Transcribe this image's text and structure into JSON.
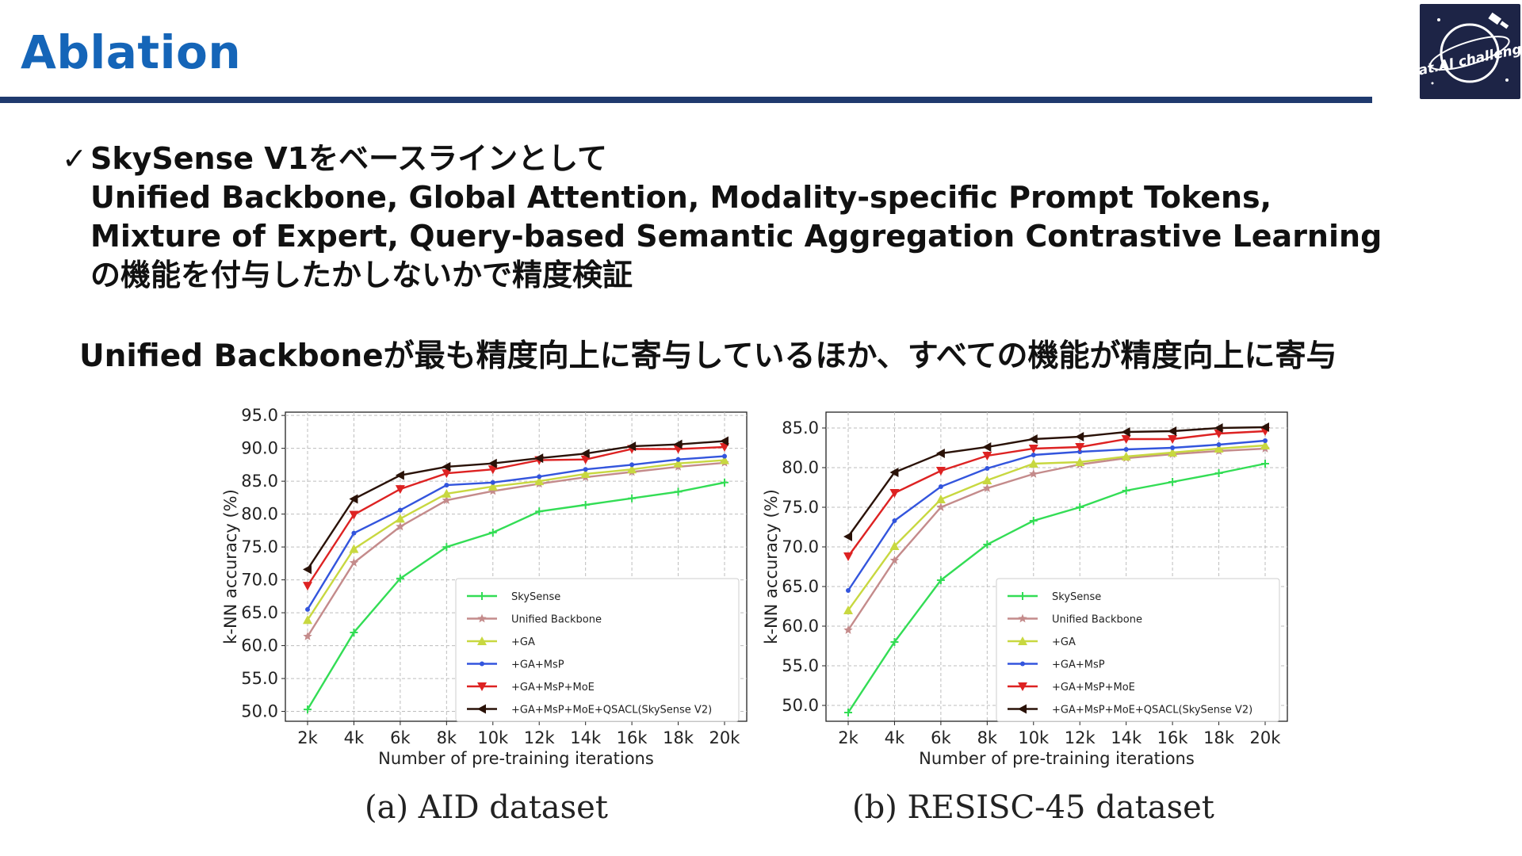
{
  "slide": {
    "title": "Ablation",
    "check_mark": "✓",
    "bullet_lines": [
      "SkySense V1をベースラインとして",
      "Unified Backbone, Global Attention, Modality-specific Prompt Tokens,",
      "Mixture of Expert, Query-based Semantic Aggregation Contrastive Learning",
      "の機能を付与したかしないかで精度検証"
    ],
    "conclusion": "Unified Backboneが最も精度向上に寄与しているほか、すべての機能が精度向上に寄与",
    "logo_text": "Sat.AI challenge"
  },
  "chart_data": [
    {
      "type": "line",
      "caption": "(a) AID dataset",
      "xlabel": "Number of pre-training iterations",
      "ylabel": "k-NN accuracy (%)",
      "categories": [
        "2k",
        "4k",
        "6k",
        "8k",
        "10k",
        "12k",
        "14k",
        "16k",
        "18k",
        "20k"
      ],
      "ylim": [
        48.5,
        95.5
      ],
      "yticks": [
        "95.0",
        "90.0",
        "85.0",
        "80.0",
        "75.0",
        "70.0",
        "65.0",
        "60.0",
        "55.0",
        "50.0"
      ],
      "grid": true,
      "legend_position": "lower-right",
      "series": [
        {
          "name": "SkySense",
          "color": "#33dd55",
          "marker": "plus",
          "values": [
            50.3,
            62.0,
            70.2,
            75.0,
            77.2,
            80.4,
            81.4,
            82.4,
            83.4,
            84.8
          ]
        },
        {
          "name": "Unified Backbone",
          "color": "#c48b8b",
          "marker": "star",
          "values": [
            61.4,
            72.6,
            78.1,
            82.1,
            83.5,
            84.6,
            85.6,
            86.4,
            87.2,
            87.8
          ]
        },
        {
          "name": "+GA",
          "color": "#c8d840",
          "marker": "triangle-up",
          "values": [
            63.9,
            74.7,
            79.3,
            83.1,
            84.2,
            85.0,
            86.1,
            86.8,
            87.7,
            88.2
          ]
        },
        {
          "name": "+GA+MsP",
          "color": "#3355dd",
          "marker": "point",
          "values": [
            65.5,
            77.1,
            80.6,
            84.4,
            84.8,
            85.7,
            86.8,
            87.5,
            88.3,
            88.8
          ]
        },
        {
          "name": "+GA+MsP+MoE",
          "color": "#dd2222",
          "marker": "triangle-down",
          "values": [
            69.1,
            79.9,
            83.8,
            86.2,
            86.8,
            88.2,
            88.3,
            89.9,
            89.9,
            90.2
          ]
        },
        {
          "name": "+GA+MsP+MoE+QSACL(SkySense V2)",
          "color": "#2a1208",
          "marker": "triangle-left",
          "values": [
            71.6,
            82.3,
            85.9,
            87.2,
            87.7,
            88.5,
            89.2,
            90.3,
            90.6,
            91.1
          ]
        }
      ]
    },
    {
      "type": "line",
      "caption": "(b) RESISC-45 dataset",
      "xlabel": "Number of pre-training iterations",
      "ylabel": "k-NN accuracy (%)",
      "categories": [
        "2k",
        "4k",
        "6k",
        "8k",
        "10k",
        "12k",
        "14k",
        "16k",
        "18k",
        "20k"
      ],
      "ylim": [
        48.0,
        87.0
      ],
      "yticks": [
        "85.0",
        "80.0",
        "75.0",
        "70.0",
        "65.0",
        "60.0",
        "55.0",
        "50.0"
      ],
      "grid": true,
      "legend_position": "lower-right",
      "series": [
        {
          "name": "SkySense",
          "color": "#33dd55",
          "marker": "plus",
          "values": [
            49.1,
            58.0,
            65.8,
            70.3,
            73.3,
            75.0,
            77.1,
            78.2,
            79.3,
            80.5
          ]
        },
        {
          "name": "Unified Backbone",
          "color": "#c48b8b",
          "marker": "star",
          "values": [
            59.5,
            68.3,
            75.0,
            77.4,
            79.2,
            80.4,
            81.2,
            81.7,
            82.1,
            82.4
          ]
        },
        {
          "name": "+GA",
          "color": "#c8d840",
          "marker": "triangle-up",
          "values": [
            62.0,
            70.1,
            76.0,
            78.4,
            80.5,
            80.7,
            81.4,
            81.9,
            82.4,
            82.8
          ]
        },
        {
          "name": "+GA+MsP",
          "color": "#3355dd",
          "marker": "point",
          "values": [
            64.5,
            73.3,
            77.6,
            79.9,
            81.6,
            82.0,
            82.3,
            82.5,
            82.9,
            83.4
          ]
        },
        {
          "name": "+GA+MsP+MoE",
          "color": "#dd2222",
          "marker": "triangle-down",
          "values": [
            68.8,
            76.8,
            79.6,
            81.5,
            82.4,
            82.6,
            83.6,
            83.6,
            84.3,
            84.6
          ]
        },
        {
          "name": "+GA+MsP+MoE+QSACL(SkySense V2)",
          "color": "#2a1208",
          "marker": "triangle-left",
          "values": [
            71.3,
            79.4,
            81.8,
            82.6,
            83.6,
            83.9,
            84.5,
            84.6,
            85.0,
            85.1
          ]
        }
      ]
    }
  ]
}
